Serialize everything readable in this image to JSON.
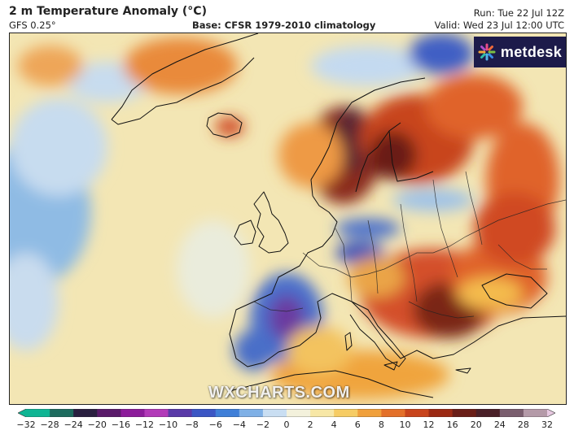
{
  "header": {
    "title": "2 m Temperature Anomaly (°C)",
    "model": "GFS 0.25°",
    "base": "Base: CFSR 1979-2010 climatology",
    "run": "Run: Tue 22 Jul 12Z",
    "valid": "Valid: Wed 23 Jul 12:00 UTC"
  },
  "logo": {
    "text": "metdesk",
    "icon": "metdesk-star-icon"
  },
  "watermark": "WXCHARTS.COM",
  "colorbar": {
    "ticks": [
      "−32",
      "−28",
      "−24",
      "−20",
      "−16",
      "−12",
      "−10",
      "−8",
      "−6",
      "−4",
      "−2",
      "0",
      "2",
      "4",
      "6",
      "8",
      "10",
      "12",
      "16",
      "20",
      "24",
      "28",
      "32"
    ],
    "colors": [
      "#0fb594",
      "#1d6b5e",
      "#2a2040",
      "#5a1a6a",
      "#8c1c9a",
      "#b23ab8",
      "#5a3aa8",
      "#3b56c4",
      "#3f7fd8",
      "#7fb0e6",
      "#c9def2",
      "#f3f1dc",
      "#f7e7a6",
      "#f6cc64",
      "#f0a03c",
      "#e3702a",
      "#c8441c",
      "#9c2a14",
      "#6a1e18",
      "#4a2028",
      "#7a5e6e",
      "#b49aa8",
      "#e6c8e0"
    ]
  },
  "colors": {
    "ocean_pale": "#f3e8b8",
    "ocean_blue": "#7fb2e0",
    "warm_orange": "#e8782c",
    "hot_dark": "#6a1e18",
    "cool_blue": "#3b5fc8"
  }
}
